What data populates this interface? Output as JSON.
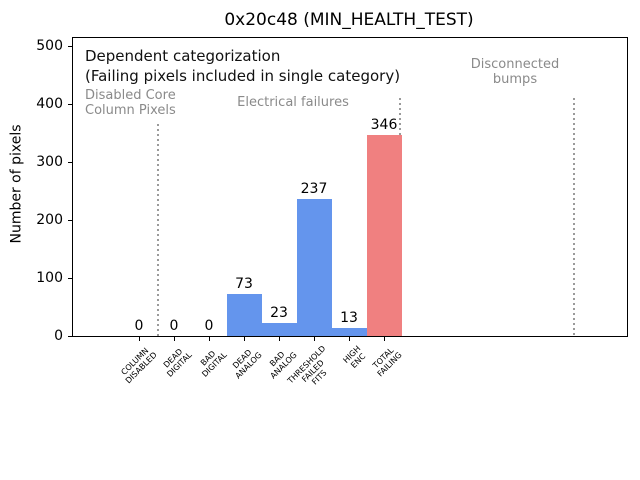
{
  "chart_data": {
    "type": "bar",
    "title": "0x20c48 (MIN_HEALTH_TEST)",
    "xlabel": "",
    "ylabel": "Number of pixels",
    "ylim": [
      0,
      515
    ],
    "yticks": [
      0,
      100,
      200,
      300,
      400,
      500
    ],
    "grid": false,
    "legend": null,
    "categories": [
      "COLUMN DISABLED",
      "DEAD DIGITAL",
      "BAD DIGITAL",
      "DEAD ANALOG",
      "BAD ANALOG",
      "THRESHOLD FAILED FITS",
      "HIGH ENC",
      "TOTAL FAILING"
    ],
    "category_lines": [
      [
        "COLUMN",
        "DISABLED"
      ],
      [
        "DEAD",
        "DIGITAL"
      ],
      [
        "BAD",
        "DIGITAL"
      ],
      [
        "DEAD",
        "ANALOG"
      ],
      [
        "BAD",
        "ANALOG"
      ],
      [
        "THRESHOLD",
        "FAILED",
        "FITS"
      ],
      [
        "HIGH",
        "ENC"
      ],
      [
        "TOTAL",
        "FAILING"
      ]
    ],
    "values": [
      0,
      0,
      0,
      73,
      23,
      237,
      13,
      346
    ],
    "bar_labels": [
      "0",
      "0",
      "0",
      "73",
      "23",
      "237",
      "13",
      "346"
    ],
    "bar_colors": [
      "#6495ed",
      "#6495ed",
      "#6495ed",
      "#6495ed",
      "#6495ed",
      "#6495ed",
      "#6495ed",
      "#f08080"
    ],
    "annotations": {
      "dependent_line1": "Dependent categorization",
      "dependent_line2": "(Failing pixels included in single category)",
      "disabled_core": [
        "Disabled Core",
        "Column Pixels"
      ],
      "electrical": "Electrical failures",
      "disconnected": [
        "Disconnected",
        "bumps"
      ]
    },
    "colors": {
      "bar_default": "#6495ed",
      "bar_total": "#f08080",
      "annotation_gray": "#8a8a8a",
      "separator_gray": "#9a9a9a"
    },
    "separator_style": "dotted"
  }
}
